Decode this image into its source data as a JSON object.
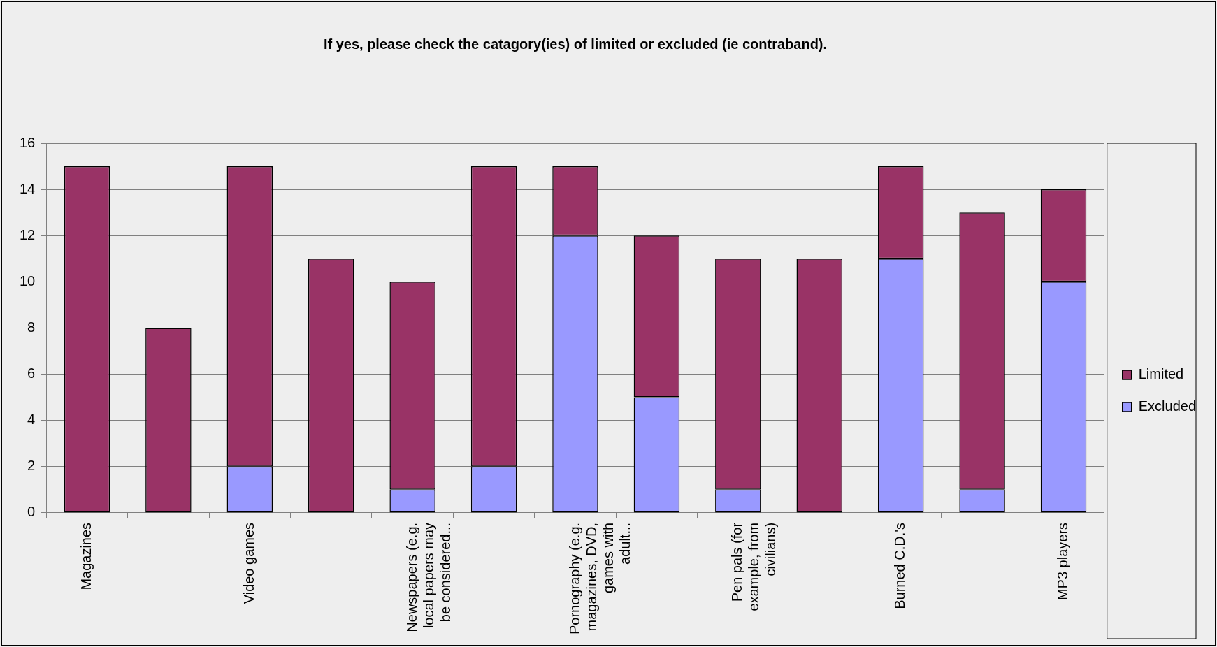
{
  "chart_data": {
    "type": "bar",
    "title": "If yes, please check the catagory(ies) of limited or excluded (ie contraband).",
    "categories": [
      "Magazines",
      null,
      "Video games",
      null,
      "Newspapers (e.g. local papers may be considered...",
      null,
      "Pornography (e.g. magazines, DVD, games with adult...",
      null,
      "Pen pals (for example, from civilians)",
      null,
      "Burned C.D.'s",
      null,
      "MP3 players"
    ],
    "stacked": true,
    "series": [
      {
        "name": "Excluded",
        "color": "#9999ff",
        "values": [
          0,
          0,
          2,
          0,
          1,
          2,
          12,
          5,
          1,
          0,
          11,
          1,
          10
        ]
      },
      {
        "name": "Limited",
        "color": "#993366",
        "values": [
          15,
          8,
          13,
          11,
          9,
          13,
          3,
          7,
          10,
          11,
          4,
          12,
          4
        ]
      }
    ],
    "ylim": [
      0,
      16
    ],
    "yticks": [
      0,
      2,
      4,
      6,
      8,
      10,
      12,
      14,
      16
    ],
    "grid": "y",
    "legend": "right"
  }
}
